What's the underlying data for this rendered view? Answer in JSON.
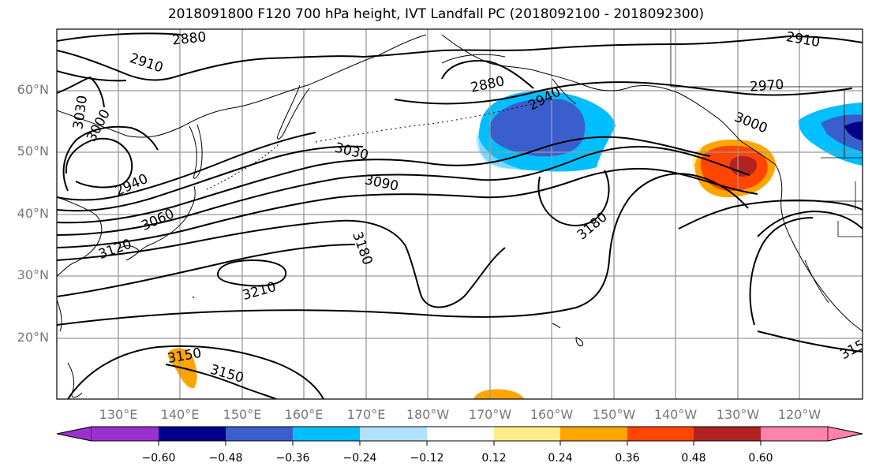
{
  "title": "2018091800 F120 700 hPa height, IVT Landfall PC (2018092100 - 2018092300)",
  "lat_labels": [
    "60°N",
    "50°N",
    "40°N",
    "30°N",
    "20°N"
  ],
  "lon_labels": [
    "130°E",
    "140°E",
    "150°E",
    "160°E",
    "170°E",
    "180°W",
    "170°W",
    "160°W",
    "150°W",
    "140°W",
    "130°W",
    "120°W"
  ],
  "contour_labels": [
    "2880",
    "2910",
    "3030",
    "3000",
    "2940",
    "3060",
    "3120",
    "2880",
    "2940",
    "3030",
    "3090",
    "3180",
    "3210",
    "3150",
    "3150",
    "3180",
    "2910",
    "2970",
    "3000",
    "315"
  ],
  "colorbar": {
    "ticks": [
      "−0.60",
      "−0.48",
      "−0.36",
      "−0.24",
      "−0.12",
      "0.12",
      "0.24",
      "0.36",
      "0.48",
      "0.60"
    ],
    "colors": [
      "#9932cc",
      "#00008b",
      "#3a5fcd",
      "#00bfff",
      "#b0e2ff",
      "#ffffff",
      "#ffec8b",
      "#ffa500",
      "#ff4500",
      "#b22222",
      "#ff82ab"
    ]
  },
  "colors": {
    "contour": "#000000",
    "coast": "#000000",
    "grid": "#999999"
  }
}
